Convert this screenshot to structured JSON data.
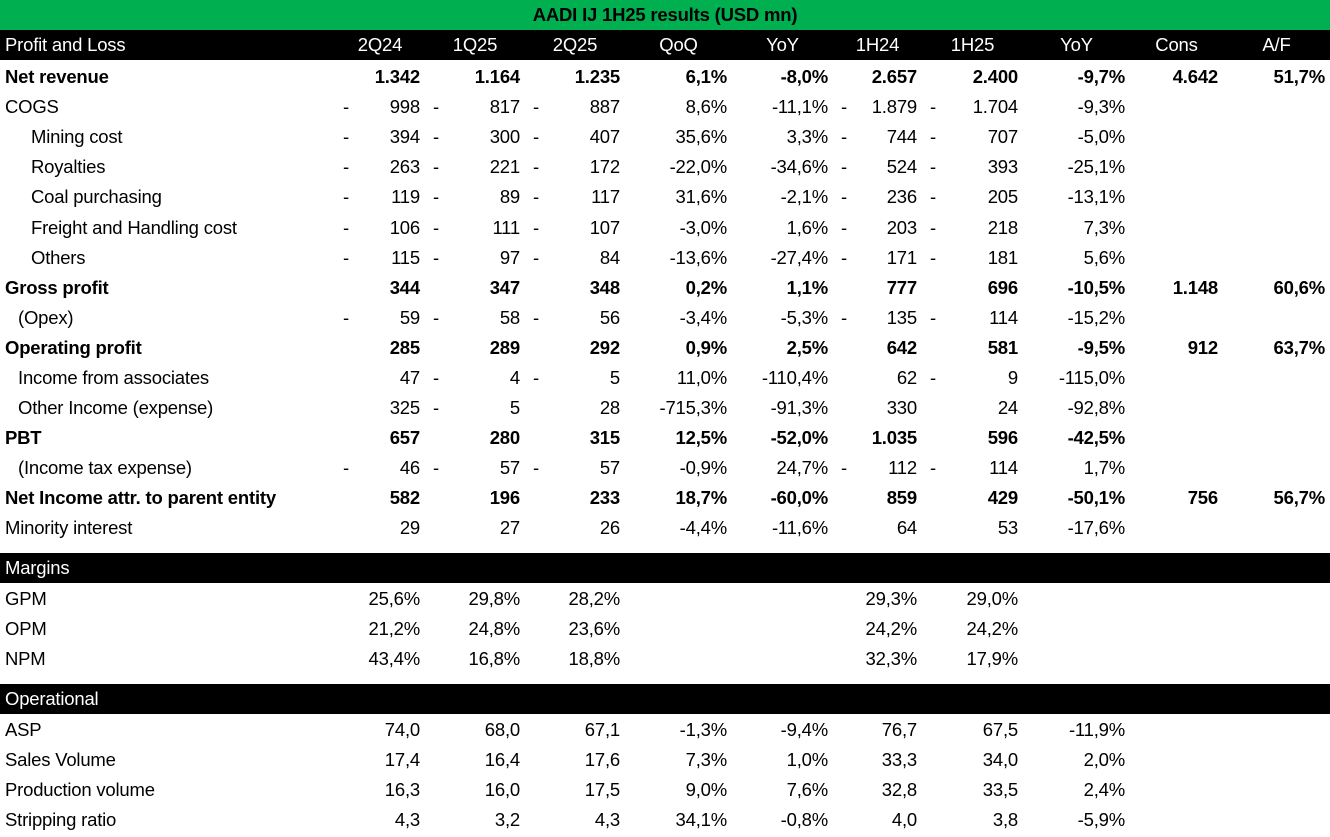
{
  "title": "AADI IJ 1H25 results (USD mn)",
  "colors": {
    "title_bg": "#00B050",
    "header_bg": "#000000",
    "header_text": "#FFFFFF"
  },
  "header": {
    "label": "Profit and Loss",
    "columns": [
      "2Q24",
      "1Q25",
      "2Q25",
      "QoQ",
      "YoY",
      "1H24",
      "1H25",
      "YoY",
      "Cons",
      "A/F"
    ]
  },
  "pnl": {
    "rows": [
      {
        "label": "Net revenue",
        "level": 0,
        "bold": true,
        "cells": [
          {
            "v": "1.342"
          },
          {
            "v": "1.164"
          },
          {
            "v": "1.235"
          },
          {
            "v": "6,1%"
          },
          {
            "v": "-8,0%"
          },
          {
            "v": "2.657"
          },
          {
            "v": "2.400"
          },
          {
            "v": "-9,7%"
          },
          {
            "v": "4.642"
          },
          {
            "v": "51,7%"
          }
        ]
      },
      {
        "label": "COGS",
        "level": 0,
        "bold": false,
        "cells": [
          {
            "v": "998",
            "dash": true
          },
          {
            "v": "817",
            "dash": true
          },
          {
            "v": "887",
            "dash": true
          },
          {
            "v": "8,6%"
          },
          {
            "v": "-11,1%"
          },
          {
            "v": "1.879",
            "dash": true
          },
          {
            "v": "1.704",
            "dash": true
          },
          {
            "v": "-9,3%"
          },
          {
            "v": ""
          },
          {
            "v": ""
          }
        ]
      },
      {
        "label": "Mining cost",
        "level": 2,
        "bold": false,
        "cells": [
          {
            "v": "394",
            "dash": true
          },
          {
            "v": "300",
            "dash": true
          },
          {
            "v": "407",
            "dash": true
          },
          {
            "v": "35,6%"
          },
          {
            "v": "3,3%"
          },
          {
            "v": "744",
            "dash": true
          },
          {
            "v": "707",
            "dash": true
          },
          {
            "v": "-5,0%"
          },
          {
            "v": ""
          },
          {
            "v": ""
          }
        ]
      },
      {
        "label": "Royalties",
        "level": 2,
        "bold": false,
        "cells": [
          {
            "v": "263",
            "dash": true
          },
          {
            "v": "221",
            "dash": true
          },
          {
            "v": "172",
            "dash": true
          },
          {
            "v": "-22,0%"
          },
          {
            "v": "-34,6%"
          },
          {
            "v": "524",
            "dash": true
          },
          {
            "v": "393",
            "dash": true
          },
          {
            "v": "-25,1%"
          },
          {
            "v": ""
          },
          {
            "v": ""
          }
        ]
      },
      {
        "label": "Coal purchasing",
        "level": 2,
        "bold": false,
        "cells": [
          {
            "v": "119",
            "dash": true
          },
          {
            "v": "89",
            "dash": true
          },
          {
            "v": "117",
            "dash": true
          },
          {
            "v": "31,6%"
          },
          {
            "v": "-2,1%"
          },
          {
            "v": "236",
            "dash": true
          },
          {
            "v": "205",
            "dash": true
          },
          {
            "v": "-13,1%"
          },
          {
            "v": ""
          },
          {
            "v": ""
          }
        ]
      },
      {
        "label": "Freight and Handling cost",
        "level": 2,
        "bold": false,
        "cells": [
          {
            "v": "106",
            "dash": true
          },
          {
            "v": "111",
            "dash": true
          },
          {
            "v": "107",
            "dash": true
          },
          {
            "v": "-3,0%"
          },
          {
            "v": "1,6%"
          },
          {
            "v": "203",
            "dash": true
          },
          {
            "v": "218",
            "dash": true
          },
          {
            "v": "7,3%"
          },
          {
            "v": ""
          },
          {
            "v": ""
          }
        ]
      },
      {
        "label": "Others",
        "level": 2,
        "bold": false,
        "cells": [
          {
            "v": "115",
            "dash": true
          },
          {
            "v": "97",
            "dash": true
          },
          {
            "v": "84",
            "dash": true
          },
          {
            "v": "-13,6%"
          },
          {
            "v": "-27,4%"
          },
          {
            "v": "171",
            "dash": true
          },
          {
            "v": "181",
            "dash": true
          },
          {
            "v": "5,6%"
          },
          {
            "v": ""
          },
          {
            "v": ""
          }
        ]
      },
      {
        "label": "Gross profit",
        "level": 0,
        "bold": true,
        "cells": [
          {
            "v": "344"
          },
          {
            "v": "347"
          },
          {
            "v": "348"
          },
          {
            "v": "0,2%"
          },
          {
            "v": "1,1%"
          },
          {
            "v": "777"
          },
          {
            "v": "696"
          },
          {
            "v": "-10,5%"
          },
          {
            "v": "1.148"
          },
          {
            "v": "60,6%"
          }
        ]
      },
      {
        "label": "(Opex)",
        "level": 1,
        "bold": false,
        "cells": [
          {
            "v": "59",
            "dash": true
          },
          {
            "v": "58",
            "dash": true
          },
          {
            "v": "56",
            "dash": true
          },
          {
            "v": "-3,4%"
          },
          {
            "v": "-5,3%"
          },
          {
            "v": "135",
            "dash": true
          },
          {
            "v": "114",
            "dash": true
          },
          {
            "v": "-15,2%"
          },
          {
            "v": ""
          },
          {
            "v": ""
          }
        ]
      },
      {
        "label": "Operating profit",
        "level": 0,
        "bold": true,
        "cells": [
          {
            "v": "285"
          },
          {
            "v": "289"
          },
          {
            "v": "292"
          },
          {
            "v": "0,9%"
          },
          {
            "v": "2,5%"
          },
          {
            "v": "642"
          },
          {
            "v": "581"
          },
          {
            "v": "-9,5%"
          },
          {
            "v": "912"
          },
          {
            "v": "63,7%"
          }
        ]
      },
      {
        "label": "Income from associates",
        "level": 1,
        "bold": false,
        "cells": [
          {
            "v": "47"
          },
          {
            "v": "4",
            "dash": true
          },
          {
            "v": "5",
            "dash": true
          },
          {
            "v": "11,0%"
          },
          {
            "v": "-110,4%"
          },
          {
            "v": "62"
          },
          {
            "v": "9",
            "dash": true
          },
          {
            "v": "-115,0%"
          },
          {
            "v": ""
          },
          {
            "v": ""
          }
        ]
      },
      {
        "label": "Other Income (expense)",
        "level": 1,
        "bold": false,
        "cells": [
          {
            "v": "325"
          },
          {
            "v": "5",
            "dash": true
          },
          {
            "v": "28"
          },
          {
            "v": "-715,3%"
          },
          {
            "v": "-91,3%"
          },
          {
            "v": "330"
          },
          {
            "v": "24"
          },
          {
            "v": "-92,8%"
          },
          {
            "v": ""
          },
          {
            "v": ""
          }
        ]
      },
      {
        "label": "PBT",
        "level": 0,
        "bold": true,
        "cells": [
          {
            "v": "657"
          },
          {
            "v": "280"
          },
          {
            "v": "315"
          },
          {
            "v": "12,5%"
          },
          {
            "v": "-52,0%"
          },
          {
            "v": "1.035"
          },
          {
            "v": "596"
          },
          {
            "v": "-42,5%"
          },
          {
            "v": ""
          },
          {
            "v": ""
          }
        ]
      },
      {
        "label": "(Income tax expense)",
        "level": 1,
        "bold": false,
        "cells": [
          {
            "v": "46",
            "dash": true
          },
          {
            "v": "57",
            "dash": true
          },
          {
            "v": "57",
            "dash": true
          },
          {
            "v": "-0,9%"
          },
          {
            "v": "24,7%"
          },
          {
            "v": "112",
            "dash": true
          },
          {
            "v": "114",
            "dash": true
          },
          {
            "v": "1,7%"
          },
          {
            "v": ""
          },
          {
            "v": ""
          }
        ]
      },
      {
        "label": "Net Income attr. to parent entity",
        "level": 0,
        "bold": true,
        "cells": [
          {
            "v": "582"
          },
          {
            "v": "196"
          },
          {
            "v": "233"
          },
          {
            "v": "18,7%"
          },
          {
            "v": "-60,0%"
          },
          {
            "v": "859"
          },
          {
            "v": "429"
          },
          {
            "v": "-50,1%"
          },
          {
            "v": "756"
          },
          {
            "v": "56,7%"
          }
        ]
      },
      {
        "label": "Minority interest",
        "level": 0,
        "bold": false,
        "cells": [
          {
            "v": "29"
          },
          {
            "v": "27"
          },
          {
            "v": "26"
          },
          {
            "v": "-4,4%"
          },
          {
            "v": "-11,6%"
          },
          {
            "v": "64"
          },
          {
            "v": "53"
          },
          {
            "v": "-17,6%"
          },
          {
            "v": ""
          },
          {
            "v": ""
          }
        ]
      }
    ]
  },
  "margins": {
    "label": "Margins",
    "rows": [
      {
        "label": "GPM",
        "level": 0,
        "bold": false,
        "cells": [
          {
            "v": "25,6%"
          },
          {
            "v": "29,8%"
          },
          {
            "v": "28,2%"
          },
          {
            "v": ""
          },
          {
            "v": ""
          },
          {
            "v": "29,3%"
          },
          {
            "v": "29,0%"
          },
          {
            "v": ""
          },
          {
            "v": ""
          },
          {
            "v": ""
          }
        ]
      },
      {
        "label": "OPM",
        "level": 0,
        "bold": false,
        "cells": [
          {
            "v": "21,2%"
          },
          {
            "v": "24,8%"
          },
          {
            "v": "23,6%"
          },
          {
            "v": ""
          },
          {
            "v": ""
          },
          {
            "v": "24,2%"
          },
          {
            "v": "24,2%"
          },
          {
            "v": ""
          },
          {
            "v": ""
          },
          {
            "v": ""
          }
        ]
      },
      {
        "label": "NPM",
        "level": 0,
        "bold": false,
        "cells": [
          {
            "v": "43,4%"
          },
          {
            "v": "16,8%"
          },
          {
            "v": "18,8%"
          },
          {
            "v": ""
          },
          {
            "v": ""
          },
          {
            "v": "32,3%"
          },
          {
            "v": "17,9%"
          },
          {
            "v": ""
          },
          {
            "v": ""
          },
          {
            "v": ""
          }
        ]
      }
    ]
  },
  "operational": {
    "label": "Operational",
    "rows": [
      {
        "label": "ASP",
        "level": 0,
        "bold": false,
        "cells": [
          {
            "v": "74,0"
          },
          {
            "v": "68,0"
          },
          {
            "v": "67,1"
          },
          {
            "v": "-1,3%"
          },
          {
            "v": "-9,4%"
          },
          {
            "v": "76,7"
          },
          {
            "v": "67,5"
          },
          {
            "v": "-11,9%"
          },
          {
            "v": ""
          },
          {
            "v": ""
          }
        ]
      },
      {
        "label": "Sales Volume",
        "level": 0,
        "bold": false,
        "cells": [
          {
            "v": "17,4"
          },
          {
            "v": "16,4"
          },
          {
            "v": "17,6"
          },
          {
            "v": "7,3%"
          },
          {
            "v": "1,0%"
          },
          {
            "v": "33,3"
          },
          {
            "v": "34,0"
          },
          {
            "v": "2,0%"
          },
          {
            "v": ""
          },
          {
            "v": ""
          }
        ]
      },
      {
        "label": "Production volume",
        "level": 0,
        "bold": false,
        "cells": [
          {
            "v": "16,3"
          },
          {
            "v": "16,0"
          },
          {
            "v": "17,5"
          },
          {
            "v": "9,0%"
          },
          {
            "v": "7,6%"
          },
          {
            "v": "32,8"
          },
          {
            "v": "33,5"
          },
          {
            "v": "2,4%"
          },
          {
            "v": ""
          },
          {
            "v": ""
          }
        ]
      },
      {
        "label": "Stripping ratio",
        "level": 0,
        "bold": false,
        "cells": [
          {
            "v": "4,3"
          },
          {
            "v": "3,2"
          },
          {
            "v": "4,3"
          },
          {
            "v": "34,1%"
          },
          {
            "v": "-0,8%"
          },
          {
            "v": "4,0"
          },
          {
            "v": "3,8"
          },
          {
            "v": "-5,9%"
          },
          {
            "v": ""
          },
          {
            "v": ""
          }
        ]
      }
    ]
  }
}
